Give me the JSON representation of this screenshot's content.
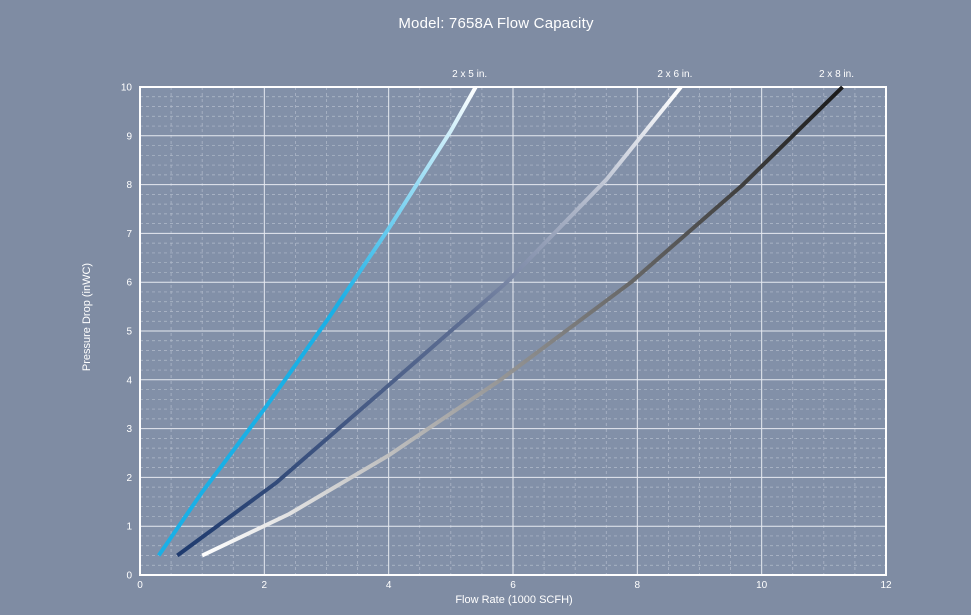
{
  "chart_data": {
    "type": "line",
    "title": "Model: 7658A Flow Capacity",
    "xlabel": "Flow Rate (1000 SCFH)",
    "ylabel": "Pressure Drop (inWC)",
    "xlim": [
      0,
      12
    ],
    "ylim": [
      0,
      10
    ],
    "xticks": [
      0,
      2,
      4,
      6,
      8,
      10,
      12
    ],
    "yticks": [
      0,
      1,
      2,
      3,
      4,
      5,
      6,
      7,
      8,
      9,
      10
    ],
    "grid": true,
    "legend": "series labels above top-right of plot",
    "series": [
      {
        "name": "2 x 5 in.",
        "points": [
          [
            0.3,
            0.4
          ],
          [
            1.0,
            1.7
          ],
          [
            2.0,
            3.4
          ],
          [
            3.0,
            5.2
          ],
          [
            4.0,
            7.1
          ],
          [
            5.0,
            9.1
          ],
          [
            5.4,
            10.0
          ]
        ],
        "color_start": "#1ab0e6",
        "color_end": "#ffffff"
      },
      {
        "name": "2 x 6 in.",
        "points": [
          [
            0.6,
            0.4
          ],
          [
            2.2,
            1.9
          ],
          [
            4.1,
            4.0
          ],
          [
            5.9,
            6.0
          ],
          [
            7.5,
            8.1
          ],
          [
            8.7,
            10.0
          ]
        ],
        "color_start": "#1e3a6e",
        "color_end": "#ffffff"
      },
      {
        "name": "2 x 8 in.",
        "points": [
          [
            1.0,
            0.4
          ],
          [
            2.4,
            1.25
          ],
          [
            4.0,
            2.45
          ],
          [
            5.8,
            4.0
          ],
          [
            7.9,
            6.0
          ],
          [
            9.7,
            8.0
          ],
          [
            11.3,
            10.0
          ]
        ],
        "color_start": "#ffffff",
        "color_end": "#1a1a1a"
      }
    ]
  }
}
